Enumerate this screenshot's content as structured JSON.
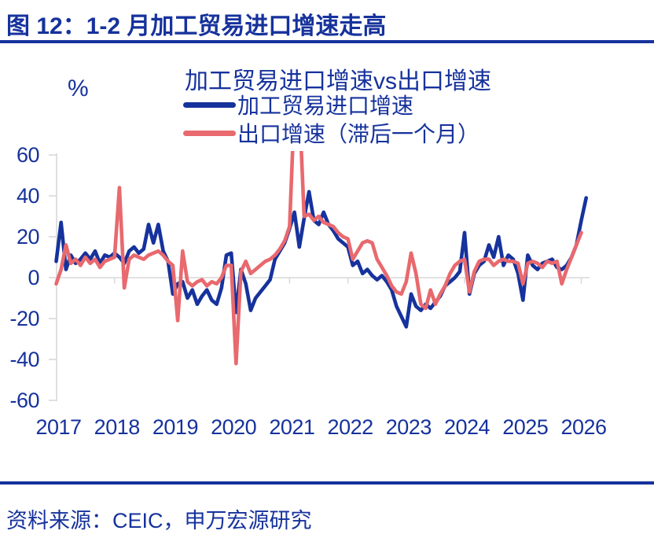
{
  "header": {
    "title": "图 12：1-2 月加工贸易进口增速走高"
  },
  "chart": {
    "title": "加工贸易进口增速vs出口增速",
    "unit_label": "%",
    "legend": [
      {
        "label": "加工贸易进口增速",
        "color": "#16329C"
      },
      {
        "label": "出口增速（滞后一个月）",
        "color": "#E8696E"
      }
    ]
  },
  "chart_data": {
    "type": "line",
    "title": "加工贸易进口增速vs出口增速",
    "ylabel": "%",
    "ylim": [
      -60,
      60
    ],
    "yticks": [
      60,
      40,
      20,
      0,
      -20,
      -40,
      -60
    ],
    "xticks": [
      2017,
      2018,
      2019,
      2020,
      2021,
      2022,
      2023,
      2024,
      2025,
      2026
    ],
    "x_start": "2017-01",
    "x_interval": "month",
    "grid": "zero-line-only",
    "legend_position": "top-center",
    "clipped_above": 60,
    "series": [
      {
        "key": "import",
        "name": "加工贸易进口增速",
        "color": "#16329C",
        "values": [
          8,
          27,
          4,
          11,
          7,
          9,
          12,
          9,
          13,
          7,
          11,
          10,
          12,
          10,
          7,
          13,
          15,
          12,
          14,
          26,
          17,
          26,
          13,
          8,
          -8,
          -3,
          -2,
          -10,
          -6,
          -13,
          -9,
          -6,
          -11,
          -13,
          -5,
          11,
          12,
          -17,
          4,
          -3,
          -16,
          -10,
          -7,
          -4,
          -1,
          9,
          13,
          17,
          24,
          32,
          15,
          29,
          42,
          28,
          26,
          32,
          26,
          23,
          19,
          17,
          15,
          6,
          8,
          2,
          4,
          1,
          -1,
          1,
          -2,
          -6,
          -14,
          -19,
          -24,
          -8,
          -14,
          -16,
          -13,
          -15,
          -12,
          -9,
          -4,
          -2,
          0,
          3,
          22,
          -8,
          2,
          6,
          8,
          16,
          10,
          20,
          6,
          11,
          9,
          2,
          -11,
          11,
          6,
          4,
          7,
          8,
          9,
          5,
          4,
          6,
          10,
          16,
          28,
          39
        ]
      },
      {
        "key": "export-lagged",
        "name": "出口增速（滞后一个月）",
        "color": "#E8696E",
        "values": [
          -3,
          4,
          16,
          7,
          9,
          6,
          10,
          7,
          9,
          5,
          8,
          9,
          10,
          44,
          -5,
          9,
          11,
          10,
          9,
          11,
          12,
          13,
          11,
          8,
          6,
          -21,
          13,
          -2,
          -4,
          -2,
          -1,
          -4,
          -2,
          -3,
          0,
          6,
          6,
          -42,
          3,
          8,
          2,
          4,
          6,
          8,
          9,
          11,
          14,
          18,
          25,
          85,
          85,
          30,
          31,
          28,
          30,
          27,
          26,
          25,
          22,
          20,
          19,
          9,
          13,
          17,
          18,
          17,
          9,
          5,
          1,
          -4,
          -7,
          -8,
          -2,
          12,
          2,
          -13,
          -15,
          -6,
          -13,
          -8,
          -4,
          2,
          6,
          8,
          9,
          -7,
          3,
          8,
          9,
          9,
          6,
          8,
          9,
          8,
          8,
          7,
          -3,
          7,
          8,
          7,
          5,
          8,
          7,
          8,
          -3,
          4,
          10,
          16,
          22
        ]
      }
    ]
  },
  "footer": {
    "source": "资料来源：CEIC，申万宏源研究"
  }
}
